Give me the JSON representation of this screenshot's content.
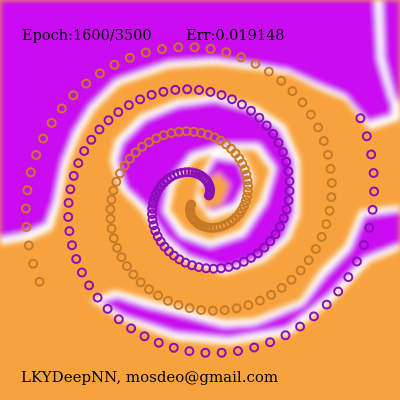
{
  "status": {
    "epoch_label": "Epoch:1600/3500",
    "error_label": "Err:0.019148"
  },
  "footer": {
    "credit": "LKYDeepNN, mosdeo@gmail.com"
  },
  "colors": {
    "class_a": "#c90ff0",
    "class_b": "#f7a23c",
    "boundary": "#ffffff",
    "marker_a": "#8a0fb8",
    "marker_b": "#c67a28"
  },
  "spiral_data": {
    "classes": [
      "purple",
      "orange"
    ],
    "turns": 2,
    "points_per_class": 120
  }
}
